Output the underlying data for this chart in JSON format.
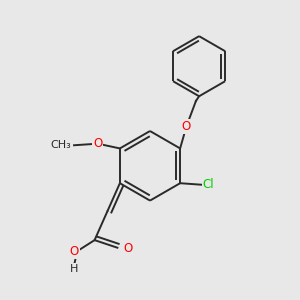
{
  "bg_color": "#e8e8e8",
  "bond_color": "#2a2a2a",
  "line_width": 1.4,
  "atom_colors": {
    "O": "#ff0000",
    "Cl": "#00cc00",
    "C": "#2a2a2a",
    "H": "#2a2a2a"
  },
  "font_size": 8.5,
  "fig_size": [
    3.0,
    3.0
  ],
  "dpi": 100
}
